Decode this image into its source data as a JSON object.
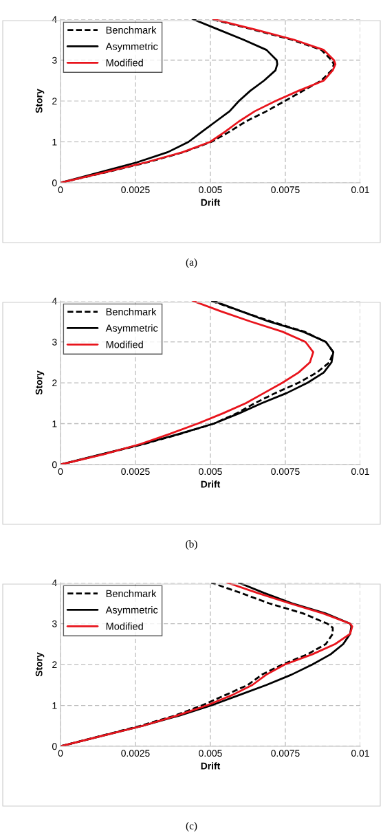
{
  "chart_data": [
    {
      "type": "line",
      "xlabel": "Drift",
      "ylabel": "Story",
      "annotations": [
        "(a)"
      ],
      "xlim": [
        0,
        0.01
      ],
      "ylim": [
        0,
        4
      ],
      "xticks": [
        0,
        0.0025,
        0.005,
        0.0075,
        0.01
      ],
      "yticks": [
        0,
        1,
        2,
        3,
        4
      ],
      "grid": true,
      "legend": "top left",
      "series": [
        {
          "name": "Benchmark",
          "color": "#000000",
          "line_style": "dashed",
          "x": [
            0,
            0.00148,
            0.00289,
            0.00411,
            0.00503,
            0.00564,
            0.00618,
            0.00687,
            0.00748,
            0.00809,
            0.0087,
            0.00904,
            0.00912,
            0.00904,
            0.0087,
            0.00771,
            0.00641,
            0.00503
          ],
          "values": [
            0,
            0.25,
            0.5,
            0.75,
            1,
            1.25,
            1.5,
            1.75,
            2,
            2.25,
            2.5,
            2.75,
            2.9,
            3,
            3.25,
            3.5,
            3.75,
            4
          ]
        },
        {
          "name": "Asymmetric",
          "color": "#000000",
          "line_style": "solid",
          "x": [
            0,
            0.00128,
            0.00255,
            0.00358,
            0.00427,
            0.00472,
            0.00518,
            0.00564,
            0.00595,
            0.00633,
            0.00679,
            0.00717,
            0.00723,
            0.00721,
            0.00687,
            0.0061,
            0.00526,
            0.00442
          ],
          "values": [
            0,
            0.25,
            0.5,
            0.75,
            1,
            1.25,
            1.5,
            1.75,
            2,
            2.25,
            2.5,
            2.75,
            2.9,
            3,
            3.25,
            3.5,
            3.75,
            4
          ]
        },
        {
          "name": "Modified",
          "color": "#e8141c",
          "line_style": "solid",
          "x": [
            0,
            0.00144,
            0.00285,
            0.00408,
            0.00499,
            0.00549,
            0.00595,
            0.00648,
            0.00717,
            0.00794,
            0.00878,
            0.00908,
            0.00917,
            0.00912,
            0.00878,
            0.00778,
            0.00648,
            0.00511
          ],
          "values": [
            0,
            0.25,
            0.5,
            0.75,
            1,
            1.25,
            1.5,
            1.75,
            2,
            2.25,
            2.5,
            2.75,
            2.9,
            3,
            3.25,
            3.5,
            3.75,
            4
          ]
        }
      ]
    },
    {
      "type": "line",
      "xlabel": "Drift",
      "ylabel": "Story",
      "annotations": [
        "(b)"
      ],
      "xlim": [
        0,
        0.01
      ],
      "ylim": [
        0,
        4
      ],
      "xticks": [
        0,
        0.0025,
        0.005,
        0.0075,
        0.01
      ],
      "yticks": [
        0,
        1,
        2,
        3,
        4
      ],
      "grid": true,
      "legend": "top left",
      "series": [
        {
          "name": "Benchmark",
          "color": "#000000",
          "line_style": "dashed",
          "x": [
            0,
            0.0014,
            0.00277,
            0.004,
            0.00511,
            0.00587,
            0.00648,
            0.00717,
            0.00794,
            0.00855,
            0.00897,
            0.0091,
            0.00885,
            0.00813,
            0.00702,
            0.00602,
            0.00503
          ],
          "values": [
            0,
            0.25,
            0.5,
            0.75,
            1,
            1.25,
            1.5,
            1.75,
            2,
            2.25,
            2.5,
            2.75,
            3,
            3.25,
            3.5,
            3.75,
            4
          ]
        },
        {
          "name": "Asymmetric",
          "color": "#000000",
          "line_style": "solid",
          "x": [
            0,
            0.00136,
            0.00274,
            0.00396,
            0.00511,
            0.00595,
            0.00671,
            0.00755,
            0.00824,
            0.00878,
            0.00904,
            0.0091,
            0.00885,
            0.00809,
            0.00694,
            0.00602,
            0.00511
          ],
          "values": [
            0,
            0.25,
            0.5,
            0.75,
            1,
            1.25,
            1.5,
            1.75,
            2,
            2.25,
            2.5,
            2.75,
            3,
            3.25,
            3.5,
            3.75,
            4
          ]
        },
        {
          "name": "Modified",
          "color": "#e8141c",
          "line_style": "solid",
          "x": [
            0,
            0.00144,
            0.00266,
            0.00365,
            0.00457,
            0.00541,
            0.00618,
            0.00679,
            0.0074,
            0.00794,
            0.00832,
            0.00843,
            0.00817,
            0.0074,
            0.00633,
            0.00534,
            0.00442
          ],
          "values": [
            0,
            0.25,
            0.5,
            0.75,
            1,
            1.25,
            1.5,
            1.75,
            2,
            2.25,
            2.5,
            2.75,
            3,
            3.25,
            3.5,
            3.75,
            4
          ]
        }
      ]
    },
    {
      "type": "line",
      "xlabel": "Drift",
      "ylabel": "Story",
      "annotations": [
        "(c)"
      ],
      "xlim": [
        0,
        0.01
      ],
      "ylim": [
        0,
        4
      ],
      "xticks": [
        0,
        0.0025,
        0.005,
        0.0075,
        0.01
      ],
      "yticks": [
        0,
        1,
        2,
        3,
        4
      ],
      "grid": true,
      "legend": "top left",
      "series": [
        {
          "name": "Benchmark",
          "color": "#000000",
          "line_style": "dashed",
          "x": [
            0,
            0.00132,
            0.00266,
            0.00381,
            0.00472,
            0.00549,
            0.00625,
            0.00671,
            0.0074,
            0.00824,
            0.00885,
            0.00908,
            0.00908,
            0.0089,
            0.00809,
            0.00694,
            0.00602,
            0.00503
          ],
          "values": [
            0,
            0.25,
            0.5,
            0.75,
            1,
            1.25,
            1.5,
            1.75,
            2,
            2.25,
            2.5,
            2.75,
            2.9,
            3,
            3.25,
            3.5,
            3.75,
            4
          ]
        },
        {
          "name": "Asymmetric",
          "color": "#000000",
          "line_style": "solid",
          "x": [
            0,
            0.00136,
            0.00274,
            0.00396,
            0.00503,
            0.00595,
            0.00687,
            0.0077,
            0.0084,
            0.00901,
            0.00943,
            0.00966,
            0.0097,
            0.00966,
            0.00884,
            0.00771,
            0.00679,
            0.00595
          ],
          "values": [
            0,
            0.25,
            0.5,
            0.75,
            1,
            1.25,
            1.5,
            1.75,
            2,
            2.25,
            2.5,
            2.75,
            2.93,
            3,
            3.25,
            3.5,
            3.75,
            4
          ]
        },
        {
          "name": "Modified",
          "color": "#e8141c",
          "line_style": "solid",
          "x": [
            0,
            0.00136,
            0.00274,
            0.00388,
            0.00488,
            0.00572,
            0.0064,
            0.00686,
            0.00748,
            0.0084,
            0.00916,
            0.00966,
            0.00973,
            0.00966,
            0.00876,
            0.00763,
            0.00657,
            0.00557
          ],
          "values": [
            0,
            0.25,
            0.5,
            0.75,
            1,
            1.25,
            1.5,
            1.75,
            2,
            2.25,
            2.5,
            2.75,
            2.93,
            3,
            3.25,
            3.5,
            3.75,
            4
          ]
        }
      ]
    }
  ]
}
